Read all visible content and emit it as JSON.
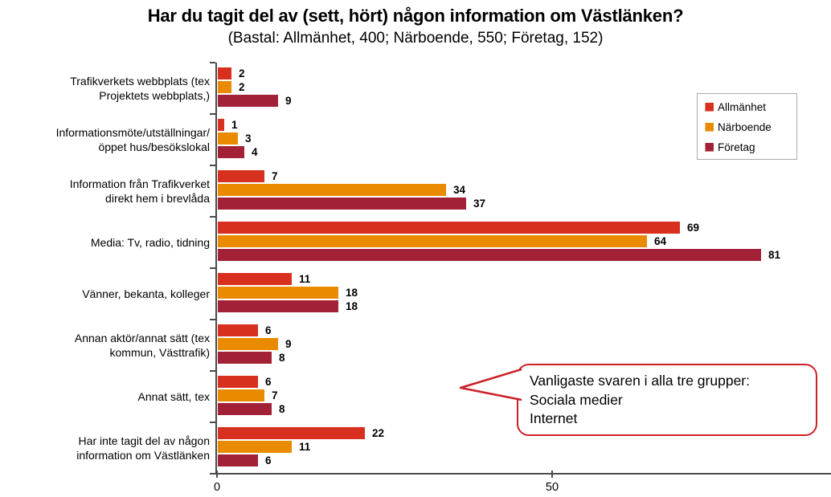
{
  "title": "Har du tagit del av (sett, hört) någon information om Västlänken?",
  "subtitle": "(Bastal: Allmänhet, 400; Närboende, 550; Företag, 152)",
  "chart_data": {
    "type": "bar",
    "orientation": "horizontal",
    "title": "Har du tagit del av (sett, hört) någon information om Västlänken?",
    "subtitle": "(Bastal: Allmänhet, 400; Närboende, 550; Företag, 152)",
    "categories": [
      "Trafikverkets webbplats (tex Projektets webbplats,)",
      "Informationsmöte/utställningar/ öppet hus/besökslokal",
      "Information från Trafikverket direkt hem i brevlåda",
      "Media: Tv, radio, tidning",
      "Vänner, bekanta, kolleger",
      "Annan aktör/annat sätt (tex kommun, Västtrafik)",
      "Annat sätt, tex",
      "Har inte tagit del av någon information om Västlänken"
    ],
    "category_lines": [
      [
        "Trafikverkets webbplats (tex",
        "Projektets webbplats,)"
      ],
      [
        "Informationsmöte/utställningar/",
        "öppet hus/besökslokal"
      ],
      [
        "Information från Trafikverket",
        "direkt hem i brevlåda"
      ],
      [
        "Media: Tv, radio, tidning"
      ],
      [
        "Vänner, bekanta, kolleger"
      ],
      [
        "Annan aktör/annat sätt (tex",
        "kommun, Västtrafik)"
      ],
      [
        "Annat sätt, tex"
      ],
      [
        "Har inte tagit del av någon",
        "information om Västlänken"
      ]
    ],
    "series": [
      {
        "name": "Allmänhet",
        "color": "#D8301F",
        "values": [
          2,
          1,
          7,
          69,
          11,
          6,
          6,
          22
        ]
      },
      {
        "name": "Närboende",
        "color": "#E98A00",
        "values": [
          2,
          3,
          34,
          64,
          18,
          9,
          7,
          11
        ]
      },
      {
        "name": "Företag",
        "color": "#A32136",
        "values": [
          9,
          4,
          37,
          81,
          18,
          8,
          8,
          6
        ]
      }
    ],
    "xticks": [
      "0",
      "50"
    ],
    "xlim": [
      0,
      91
    ],
    "grid": false,
    "legend_position": "top-right"
  },
  "callout": {
    "lines": [
      "Vanligaste svaren i alla tre grupper:",
      "Sociala medier",
      "Internet"
    ],
    "border_color": "#cc2027"
  }
}
